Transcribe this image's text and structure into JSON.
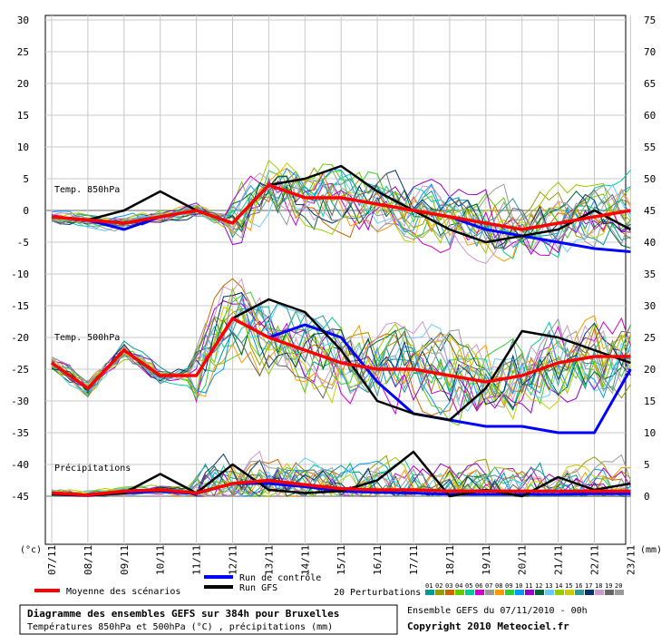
{
  "chart_data": {
    "type": "line",
    "title": "Diagramme des ensembles GEFS sur 384h pour Bruxelles",
    "subtitle": "Températures 850hPa et 500hPa (°C) , précipitations (mm)",
    "run_info": "Ensemble GEFS du 07/11/2010 - 00h",
    "copyright": "Copyright 2010 Meteociel.fr",
    "left_unit": "(°c)",
    "right_unit": "(mm)",
    "left_ticks": [
      30,
      25,
      20,
      15,
      10,
      5,
      0,
      -5,
      -10,
      -15,
      -20,
      -25,
      -30,
      -35,
      -40,
      -45
    ],
    "right_ticks": [
      75,
      70,
      65,
      60,
      55,
      50,
      45,
      40,
      35,
      30,
      25,
      20,
      15,
      10,
      5,
      0
    ],
    "x_categories": [
      "07/11",
      "08/11",
      "09/11",
      "10/11",
      "11/11",
      "12/11",
      "13/11",
      "14/11",
      "15/11",
      "16/11",
      "17/11",
      "18/11",
      "19/11",
      "20/11",
      "21/11",
      "22/11",
      "23/11"
    ],
    "panel_labels": {
      "t850": "Temp. 850hPa",
      "t500": "Temp. 500hPa",
      "precip": "Précipitations"
    },
    "legend": {
      "mean": "Moyenne des scénarios",
      "control": "Run de contrôle",
      "gfs": "Run GFS",
      "perturbations": "20 Perturbations",
      "perturbation_ids": [
        "01",
        "02",
        "03",
        "04",
        "05",
        "06",
        "07",
        "08",
        "09",
        "10",
        "11",
        "12",
        "13",
        "14",
        "15",
        "16",
        "17",
        "18",
        "19",
        "20"
      ]
    },
    "colors": {
      "mean": "#ff0000",
      "control": "#0000ff",
      "gfs": "#000000",
      "perturbations": [
        "#009999",
        "#999900",
        "#cc6600",
        "#66cc00",
        "#00cc99",
        "#cc00cc",
        "#999999",
        "#ff9900",
        "#33cc33",
        "#0099ff",
        "#9900cc",
        "#006633",
        "#66ccff",
        "#99cc00",
        "#cccc00",
        "#339999",
        "#003366",
        "#cc99cc",
        "#666666",
        "#999999"
      ]
    },
    "series": {
      "t850": {
        "mean": [
          -1,
          -1.5,
          -2,
          -1,
          0,
          -2,
          4,
          2,
          2,
          1,
          0,
          -1,
          -2,
          -3,
          -2,
          -1,
          0
        ],
        "control": [
          -1,
          -1.5,
          -3,
          -1,
          0,
          -2,
          4,
          2,
          2,
          1,
          0,
          -1,
          -3,
          -4,
          -5,
          -6,
          -6.5
        ],
        "gfs": [
          -1,
          -1.5,
          0,
          3,
          0,
          -2,
          4,
          5,
          7,
          3,
          0,
          -3,
          -5,
          -4,
          -3,
          0,
          -3
        ]
      },
      "t500": {
        "mean": [
          -24,
          -28,
          -22,
          -26,
          -26,
          -17,
          -20,
          -22,
          -24,
          -25,
          -25,
          -26,
          -27,
          -26,
          -24,
          -23,
          -23
        ],
        "control": [
          -24,
          -28,
          -22,
          -26,
          -26,
          -17,
          -20,
          -18,
          -20,
          -27,
          -32,
          -33,
          -34,
          -34,
          -35,
          -35,
          -25
        ],
        "gfs": [
          -24,
          -28,
          -22,
          -26,
          -26,
          -17,
          -14,
          -16,
          -22,
          -30,
          -32,
          -33,
          -28,
          -19,
          -20,
          -22,
          -24
        ]
      },
      "precip": {
        "mean": [
          0.5,
          0.2,
          0.8,
          1.0,
          0.5,
          2.0,
          2.5,
          1.8,
          1.2,
          1.0,
          1.0,
          0.8,
          0.8,
          0.8,
          0.8,
          0.8,
          0.8
        ],
        "control": [
          0.3,
          0.1,
          0.5,
          0.8,
          0.4,
          2.0,
          2.0,
          1.5,
          0.8,
          0.6,
          0.5,
          0.3,
          0.3,
          0.3,
          0.3,
          0.4,
          0.4
        ],
        "gfs": [
          0.3,
          0.1,
          0.5,
          3.5,
          0.5,
          5,
          1,
          0.5,
          0.8,
          2.5,
          7,
          0,
          1,
          0,
          3,
          1,
          2
        ]
      }
    }
  }
}
